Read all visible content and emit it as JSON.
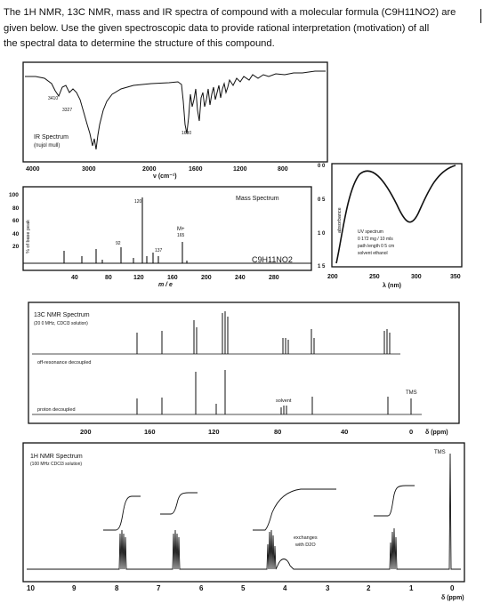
{
  "question": {
    "lines": [
      "The 1H NMR, 13C NMR, mass and IR spectra of compound with a molecular formula (C9H11NO2) are",
      "given below. Use the given spectroscopic data to provide rational interpretation (motivation) of all",
      "the spectral data to determine the structure of this compound."
    ]
  },
  "ir": {
    "title": "IR Spectrum",
    "subtitle": "(nujol mull)",
    "peak_labels": [
      "3410",
      "3327",
      "1680"
    ],
    "x_ticks": [
      "4000",
      "3000",
      "2000",
      "1600",
      "1200",
      "800"
    ],
    "x_label": "ν (cm⁻¹)"
  },
  "uv": {
    "y_axis_label": "absorbance",
    "y_ticks": [
      "0 0",
      "0 5",
      "1 0",
      "1 5"
    ],
    "x_ticks": [
      "200",
      "250",
      "300",
      "350"
    ],
    "x_label": "λ (nm)",
    "notes": [
      "UV spectrum",
      "0 172 mg / 10 mls",
      "path length   0 5 cm",
      "solvent   ethanol"
    ]
  },
  "mass": {
    "title": "Mass Spectrum",
    "y_axis_label": "% of base peak",
    "y_ticks": [
      "100",
      "80",
      "60",
      "40",
      "20"
    ],
    "x_ticks": [
      "40",
      "80",
      "120",
      "160",
      "200",
      "240",
      "280"
    ],
    "x_label": "m / e",
    "peak_labels": [
      "120",
      "92",
      "137",
      "M+",
      "165"
    ],
    "formula": "C9H11NO2"
  },
  "c13": {
    "title": "13C NMR Spectrum",
    "subtitle": "(20 0 MHz, CDCl3 solution)",
    "trace_labels": [
      "off-resonance decoupled",
      "proton decoupled"
    ],
    "annotations": [
      "solvent",
      "TMS"
    ],
    "x_ticks": [
      "200",
      "160",
      "120",
      "80",
      "40",
      "0"
    ],
    "x_label": "δ (ppm)"
  },
  "h1": {
    "title": "1H NMR Spectrum",
    "subtitle": "(100 MHz  CDCl3 solution)",
    "annotations": [
      "TMS",
      "exchanges",
      "with D2O"
    ],
    "x_ticks": [
      "10",
      "9",
      "8",
      "7",
      "6",
      "5",
      "4",
      "3",
      "2",
      "1",
      "0"
    ],
    "x_label": "δ (ppm)"
  }
}
